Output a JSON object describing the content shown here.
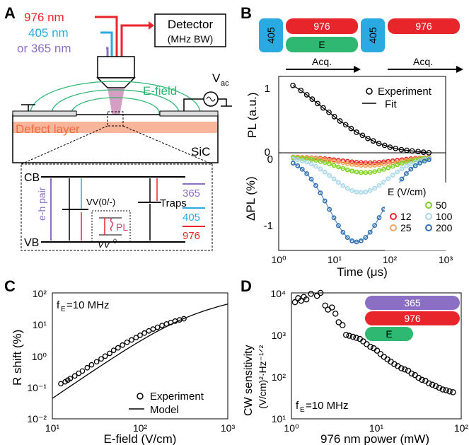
{
  "colors": {
    "red": "#e8252a",
    "blue": "#29abe2",
    "purple": "#8b6fc4",
    "green": "#2eb872",
    "orange": "#f26a3d",
    "pink": "#d0466e"
  },
  "panelA": {
    "label": "A",
    "laser_976": "976 nm",
    "laser_405": "405 nm",
    "laser_365": "or 365 nm",
    "detector": "Detector",
    "detector_bw": "(MHz BW)",
    "efield": "E-field",
    "vac": "V",
    "vac_sub": "ac",
    "defect_layer": "Defect layer",
    "substrate": "SiC",
    "cb": "CB",
    "vb": "VB",
    "eh_pair": "e-h pair",
    "vv": "VV(0/-)",
    "vv0": "VV",
    "vv0_sup": "0",
    "pl": "PL",
    "traps": "Traps",
    "legend_365": "365",
    "legend_405": "405",
    "legend_976": "976"
  },
  "panelB": {
    "label": "B",
    "seq_405": "405",
    "seq_976": "976",
    "seq_E": "E",
    "seq2_405": "405",
    "seq2_976": "976",
    "acq1": "Acq.",
    "acq2": "Acq.",
    "top_ylabel": "PL (a.u.)",
    "top_legend": [
      "Experiment",
      "Fit"
    ],
    "bottom_ylabel": "ΔPL (%)",
    "xlabel": "Time (μs)",
    "legend_title": "E (V/cm)",
    "legend_items": [
      "50",
      "12",
      "100",
      "25",
      "200"
    ],
    "top_yticks": [
      "1",
      "0"
    ],
    "bottom_yticks": [
      "0",
      "-1"
    ],
    "xticks": [
      "10⁰",
      "10¹",
      "10²",
      "10³"
    ]
  },
  "panelC": {
    "label": "C",
    "annotation": "f",
    "annotation_sub": "E",
    "annotation_rest": "=10 MHz",
    "ylabel": "R shift (%)",
    "xlabel": "E-field (V/cm)",
    "legend": [
      "Experiment",
      "Model"
    ],
    "yticks": [
      "10²",
      "10¹",
      "10⁰",
      "10⁻¹",
      "10⁻²"
    ],
    "xticks": [
      "10¹",
      "10²",
      "10³"
    ]
  },
  "panelD": {
    "label": "D",
    "annotation": "f",
    "annotation_sub": "E",
    "annotation_rest": "=10 MHz",
    "ylabel_line1": "CW sensitivity",
    "ylabel_line2": "(V/cm)²·Hz⁻¹ᐟ²",
    "xlabel": "976 nm power (mW)",
    "bar_365": "365",
    "bar_976": "976",
    "bar_E": "E",
    "yticks": [
      "10⁴",
      "10³",
      "10²",
      "10¹"
    ],
    "xticks": [
      "10⁰",
      "10¹",
      "10²"
    ]
  },
  "chart_data": [
    {
      "type": "line",
      "panel": "B-top",
      "xscale": "log",
      "xlim": [
        1,
        1000
      ],
      "ylim": [
        0,
        1.2
      ],
      "series": [
        {
          "name": "Experiment",
          "x": [
            1.8,
            2.5,
            3.2,
            4,
            5,
            6.3,
            8,
            10,
            12.6,
            16,
            20,
            25,
            32,
            40,
            50,
            63,
            80,
            100,
            126,
            160,
            200,
            250,
            320,
            400,
            500
          ],
          "y": [
            1.08,
            1.0,
            0.93,
            0.86,
            0.79,
            0.72,
            0.65,
            0.58,
            0.51,
            0.45,
            0.39,
            0.33,
            0.28,
            0.23,
            0.19,
            0.15,
            0.12,
            0.09,
            0.07,
            0.05,
            0.04,
            0.03,
            0.02,
            0.01,
            0.0
          ]
        }
      ]
    },
    {
      "type": "line",
      "panel": "B-bottom",
      "xscale": "log",
      "xlim": [
        1,
        1000
      ],
      "ylim": [
        -1.3,
        0.05
      ],
      "series": [
        {
          "name": "12",
          "min": -0.08,
          "tmin": 40
        },
        {
          "name": "25",
          "min": -0.12,
          "tmin": 40
        },
        {
          "name": "50",
          "min": -0.22,
          "tmin": 35
        },
        {
          "name": "100",
          "min": -0.5,
          "tmin": 30
        },
        {
          "name": "200",
          "min": -1.2,
          "tmin": 25
        }
      ]
    },
    {
      "type": "scatter",
      "panel": "C",
      "xscale": "log",
      "yscale": "log",
      "xlim": [
        10,
        1000
      ],
      "ylim": [
        0.01,
        100
      ],
      "series": [
        {
          "name": "Experiment",
          "x": [
            12.5,
            14,
            15,
            16,
            18,
            20,
            22,
            25,
            28,
            32,
            36,
            40,
            45,
            50,
            56,
            63,
            71,
            80,
            90,
            100,
            112,
            126,
            141,
            158,
            178,
            200,
            224,
            251,
            282,
            316
          ],
          "y": [
            0.13,
            0.15,
            0.17,
            0.19,
            0.23,
            0.28,
            0.33,
            0.42,
            0.52,
            0.65,
            0.8,
            0.98,
            1.2,
            1.5,
            1.8,
            2.2,
            2.7,
            3.2,
            3.8,
            4.5,
            5.3,
            6.2,
            7.1,
            8.1,
            9.2,
            10.3,
            11.5,
            12.7,
            13.9,
            15.1
          ]
        }
      ]
    },
    {
      "type": "scatter",
      "panel": "D",
      "xscale": "log",
      "yscale": "log",
      "xlim": [
        1,
        100
      ],
      "ylim": [
        10,
        10000
      ],
      "series": [
        {
          "name": "sensitivity",
          "x": [
            1.1,
            1.2,
            1.3,
            1.4,
            1.5,
            1.7,
            2.0,
            2.2,
            2.5,
            2.7,
            3.0,
            3.3,
            3.6,
            4.0,
            4.4,
            4.8,
            5.3,
            5.8,
            6.4,
            7.0,
            7.7,
            8.5,
            9.3,
            10.2,
            11.2,
            12.3,
            13.5,
            14.8,
            16.3,
            17.9,
            19.7,
            21.6,
            23.7,
            26,
            28.6,
            31.4,
            34.5,
            37.9,
            41.6,
            45.7,
            50.2,
            55.1,
            60.5,
            66.4,
            72.9,
            80
          ],
          "y": [
            6000,
            7500,
            6500,
            8000,
            7000,
            9500,
            8500,
            10000,
            5000,
            4000,
            4500,
            3200,
            2000,
            1700,
            1000,
            950,
            900,
            850,
            800,
            700,
            600,
            520,
            480,
            420,
            350,
            300,
            260,
            230,
            200,
            180,
            160,
            150,
            140,
            120,
            110,
            95,
            85,
            80,
            70,
            65,
            60,
            55,
            50,
            48,
            45,
            43
          ]
        }
      ]
    }
  ]
}
